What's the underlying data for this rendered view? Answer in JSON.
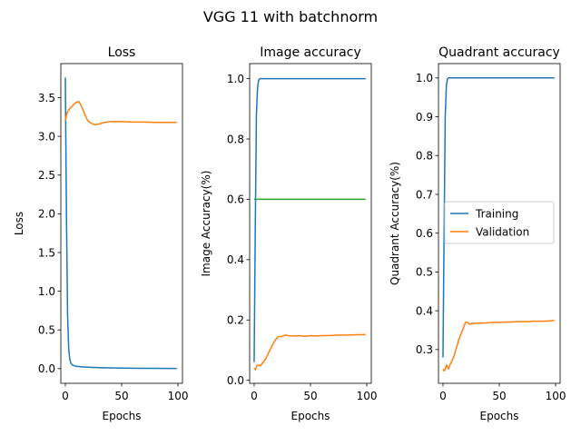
{
  "suptitle": "VGG 11 with batchnorm",
  "colors": {
    "training": "#1f77b4",
    "validation": "#ff7f0e",
    "reference": "#2ca02c"
  },
  "chart_data": [
    {
      "type": "line",
      "title": "Loss",
      "xlabel": "Epochs",
      "ylabel": "Loss",
      "xlim": [
        -4,
        104
      ],
      "ylim": [
        -0.19,
        3.94
      ],
      "xticks": [
        0,
        50,
        100
      ],
      "yticks": [
        0.0,
        0.5,
        1.0,
        1.5,
        2.0,
        2.5,
        3.0,
        3.5
      ],
      "ytick_labels": [
        "0.0",
        "0.5",
        "1.0",
        "1.5",
        "2.0",
        "2.5",
        "3.0",
        "3.5"
      ],
      "grid": false,
      "series": [
        {
          "key": "training",
          "x": [
            0,
            1,
            2,
            3,
            4,
            5,
            6,
            8,
            10,
            15,
            20,
            30,
            40,
            50,
            60,
            70,
            80,
            90,
            99
          ],
          "y": [
            3.76,
            2.0,
            0.7,
            0.25,
            0.12,
            0.07,
            0.05,
            0.035,
            0.03,
            0.022,
            0.018,
            0.012,
            0.009,
            0.007,
            0.005,
            0.004,
            0.003,
            0.002,
            0.002
          ]
        },
        {
          "key": "validation",
          "x": [
            0,
            1,
            2,
            4,
            6,
            8,
            10,
            12,
            14,
            16,
            18,
            20,
            23,
            26,
            30,
            35,
            40,
            50,
            60,
            70,
            80,
            90,
            99
          ],
          "y": [
            3.2,
            3.27,
            3.32,
            3.36,
            3.39,
            3.42,
            3.44,
            3.45,
            3.4,
            3.33,
            3.26,
            3.2,
            3.17,
            3.15,
            3.16,
            3.18,
            3.19,
            3.19,
            3.185,
            3.185,
            3.18,
            3.18,
            3.18
          ]
        }
      ]
    },
    {
      "type": "line",
      "title": "Image accuracy",
      "xlabel": "Epochs",
      "ylabel": "Image Accuracy(%)",
      "xlim": [
        -4,
        104
      ],
      "ylim": [
        -0.01,
        1.05
      ],
      "xticks": [
        0,
        50,
        100
      ],
      "yticks": [
        0.0,
        0.2,
        0.4,
        0.6,
        0.8,
        1.0
      ],
      "ytick_labels": [
        "0.0",
        "0.2",
        "0.4",
        "0.6",
        "0.8",
        "1.0"
      ],
      "grid": false,
      "series": [
        {
          "key": "training",
          "x": [
            0,
            1,
            2,
            3,
            4,
            5,
            6,
            10,
            20,
            40,
            60,
            80,
            99
          ],
          "y": [
            0.06,
            0.5,
            0.88,
            0.97,
            0.995,
            1.0,
            1.0,
            1.0,
            1.0,
            1.0,
            1.0,
            1.0,
            1.0
          ]
        },
        {
          "key": "validation",
          "x": [
            0,
            1,
            2,
            3,
            4,
            5,
            6,
            8,
            10,
            12,
            14,
            16,
            18,
            20,
            22,
            24,
            26,
            28,
            30,
            35,
            40,
            45,
            50,
            55,
            60,
            65,
            70,
            75,
            80,
            85,
            90,
            95,
            99
          ],
          "y": [
            0.04,
            0.035,
            0.045,
            0.05,
            0.05,
            0.048,
            0.05,
            0.06,
            0.07,
            0.085,
            0.1,
            0.115,
            0.128,
            0.14,
            0.145,
            0.145,
            0.147,
            0.15,
            0.148,
            0.147,
            0.148,
            0.146,
            0.148,
            0.147,
            0.148,
            0.148,
            0.149,
            0.15,
            0.15,
            0.15,
            0.151,
            0.151,
            0.152
          ]
        },
        {
          "key": "reference",
          "x": [
            0,
            99
          ],
          "y": [
            0.6,
            0.6
          ]
        }
      ]
    },
    {
      "type": "line",
      "title": "Quadrant accuracy",
      "xlabel": "Epochs",
      "ylabel": "Quadrant Accuracy(%)",
      "xlim": [
        -4,
        104
      ],
      "ylim": [
        0.213,
        1.037
      ],
      "xticks": [
        0,
        50,
        100
      ],
      "yticks": [
        0.3,
        0.4,
        0.5,
        0.6,
        0.7,
        0.8,
        0.9,
        1.0
      ],
      "ytick_labels": [
        "0.3",
        "0.4",
        "0.5",
        "0.6",
        "0.7",
        "0.8",
        "0.9",
        "1.0"
      ],
      "grid": false,
      "legend": {
        "placement": "center-right",
        "entries": [
          {
            "key": "training",
            "label": "Training"
          },
          {
            "key": "validation",
            "label": "Validation"
          }
        ]
      },
      "series": [
        {
          "key": "training",
          "x": [
            0,
            1,
            2,
            3,
            4,
            5,
            6,
            10,
            20,
            40,
            60,
            80,
            99
          ],
          "y": [
            0.28,
            0.6,
            0.9,
            0.98,
            0.998,
            1.0,
            1.0,
            1.0,
            1.0,
            1.0,
            1.0,
            1.0,
            1.0
          ]
        },
        {
          "key": "validation",
          "x": [
            0,
            1,
            2,
            3,
            4,
            5,
            6,
            7,
            8,
            10,
            12,
            14,
            16,
            18,
            20,
            22,
            24,
            26,
            28,
            30,
            35,
            40,
            45,
            50,
            55,
            60,
            65,
            70,
            75,
            80,
            85,
            90,
            95,
            99
          ],
          "y": [
            0.25,
            0.245,
            0.25,
            0.26,
            0.255,
            0.25,
            0.26,
            0.265,
            0.27,
            0.285,
            0.305,
            0.325,
            0.34,
            0.355,
            0.37,
            0.37,
            0.365,
            0.368,
            0.367,
            0.368,
            0.368,
            0.369,
            0.37,
            0.37,
            0.371,
            0.371,
            0.372,
            0.372,
            0.372,
            0.373,
            0.373,
            0.373,
            0.374,
            0.375
          ]
        }
      ]
    }
  ]
}
